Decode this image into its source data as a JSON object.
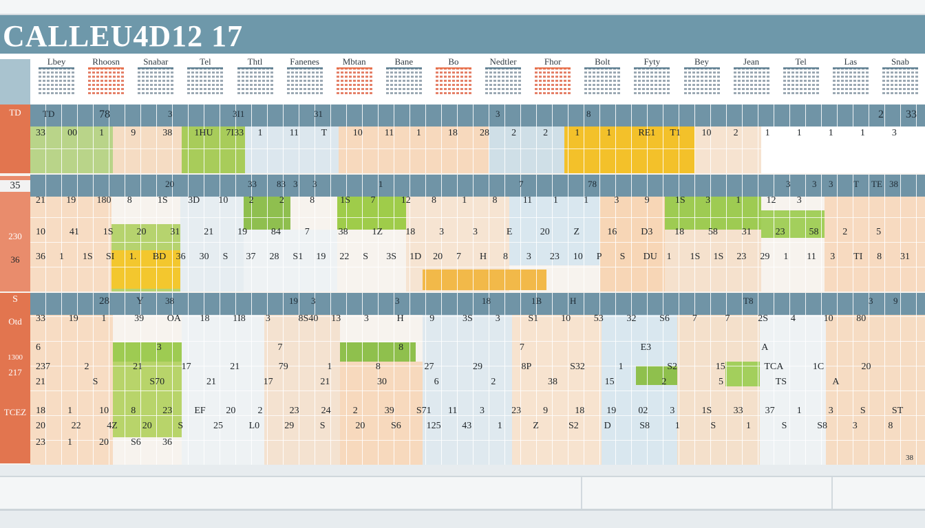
{
  "app": {
    "title": "CALLEU4D12 17"
  },
  "months": [
    {
      "label": "Lbey",
      "accent": false
    },
    {
      "label": "Rhoosn",
      "accent": true
    },
    {
      "label": "Snabar",
      "accent": false
    },
    {
      "label": "Tel",
      "accent": false
    },
    {
      "label": "Thtl",
      "accent": false
    },
    {
      "label": "Fanenes",
      "accent": false
    },
    {
      "label": "Mbtan",
      "accent": true
    },
    {
      "label": "Bane",
      "accent": false
    },
    {
      "label": "Bo",
      "accent": true
    },
    {
      "label": "Nedtler",
      "accent": false
    },
    {
      "label": "Fhor",
      "accent": true
    },
    {
      "label": "Bolt",
      "accent": false
    },
    {
      "label": "Fyty",
      "accent": false
    },
    {
      "label": "Bey",
      "accent": false
    },
    {
      "label": "Jean",
      "accent": false
    },
    {
      "label": "Tel",
      "accent": false
    },
    {
      "label": "Las",
      "accent": false
    },
    {
      "label": "Snab",
      "accent": false
    }
  ],
  "side_labels": [
    "TD",
    "35",
    "230",
    "36",
    "S",
    "Otd",
    "1300",
    "217",
    "TCEZ"
  ],
  "band1": {
    "header": [
      "TD",
      "78",
      "3",
      "3I1",
      "31",
      "3",
      "8",
      "2",
      "33"
    ],
    "row1": [
      "33",
      "00",
      "1",
      "9",
      "38",
      "1HU",
      "7I33",
      "1",
      "11",
      "T",
      "10",
      "11",
      "1",
      "18",
      "28",
      "2",
      "2",
      "1",
      "1",
      "RE1",
      "T1",
      "10",
      "2",
      "1",
      "1",
      "1",
      "1",
      "3"
    ]
  },
  "band2": {
    "header": [
      "20",
      "33",
      "83",
      "3",
      "3",
      "1",
      "7",
      "78",
      "3",
      "3",
      "3",
      "T",
      "TE",
      "38"
    ],
    "row1": [
      "21",
      "19",
      "180",
      "8",
      "1S",
      "3D",
      "10",
      "2",
      "2",
      "8",
      "1S",
      "7",
      "12",
      "8",
      "1",
      "8",
      "11",
      "1",
      "1",
      "3",
      "9",
      "1S",
      "3",
      "1",
      "12",
      "3"
    ],
    "row2": [
      "10",
      "41",
      "1S",
      "20",
      "31",
      "21",
      "19",
      "84",
      "7",
      "38",
      "1Z",
      "18",
      "3",
      "3",
      "E",
      "20",
      "Z",
      "16",
      "D3",
      "18",
      "58",
      "31",
      "23",
      "58",
      "2",
      "5"
    ],
    "row3": [
      "36",
      "1",
      "1S",
      "SI",
      "1.",
      "BD",
      "36",
      "30",
      "S",
      "37",
      "28",
      "S1",
      "19",
      "22",
      "S",
      "3S",
      "1D",
      "20",
      "7",
      "H",
      "8",
      "3",
      "23",
      "10",
      "P",
      "S",
      "DU",
      "1",
      "1S",
      "1S",
      "23",
      "29",
      "1",
      "11",
      "3",
      "TI",
      "8",
      "31"
    ]
  },
  "band3": {
    "header": [
      "28",
      "Y",
      "38",
      "19",
      "3",
      "3",
      "18",
      "1B",
      "H",
      "T8",
      "3",
      "9"
    ],
    "row1": [
      "33",
      "19",
      "1",
      "39",
      "OA",
      "18",
      "1I8",
      "3",
      "8S40",
      "13",
      "3",
      "H",
      "9",
      "3S",
      "3",
      "S1",
      "10",
      "53",
      "32",
      "S6",
      "7",
      "7",
      "2S",
      "4",
      "10",
      "80"
    ],
    "row2": [
      "6",
      "3",
      "7",
      "8",
      "7",
      "E3",
      "A"
    ],
    "row3": [
      "237",
      "2",
      "21",
      "17",
      "21",
      "79",
      "1",
      "8",
      "27",
      "29",
      "8P",
      "S32",
      "1",
      "S2",
      "15",
      "TCA",
      "1C",
      "20"
    ],
    "row4": [
      "21",
      "S",
      "S70",
      "21",
      "17",
      "21",
      "30",
      "6",
      "2",
      "38",
      "15",
      "2",
      "5",
      "TS",
      "A"
    ],
    "row5": [
      "18",
      "1",
      "10",
      "8",
      "23",
      "EF",
      "20",
      "2",
      "23",
      "24",
      "2",
      "39",
      "S71",
      "11",
      "3",
      "23",
      "9",
      "18",
      "19",
      "02",
      "3",
      "1S",
      "33",
      "37",
      "1",
      "3",
      "S",
      "ST"
    ],
    "row6": [
      "20",
      "22",
      "4Z",
      "20",
      "S",
      "25",
      "L0",
      "29",
      "S",
      "20",
      "S6",
      "125",
      "43",
      "1",
      "Z",
      "S2",
      "D",
      "S8",
      "1",
      "S",
      "1",
      "S",
      "S8",
      "3",
      "8"
    ],
    "row7": [
      "23",
      "1",
      "20",
      "S6",
      "36"
    ]
  },
  "footer_label": "38"
}
